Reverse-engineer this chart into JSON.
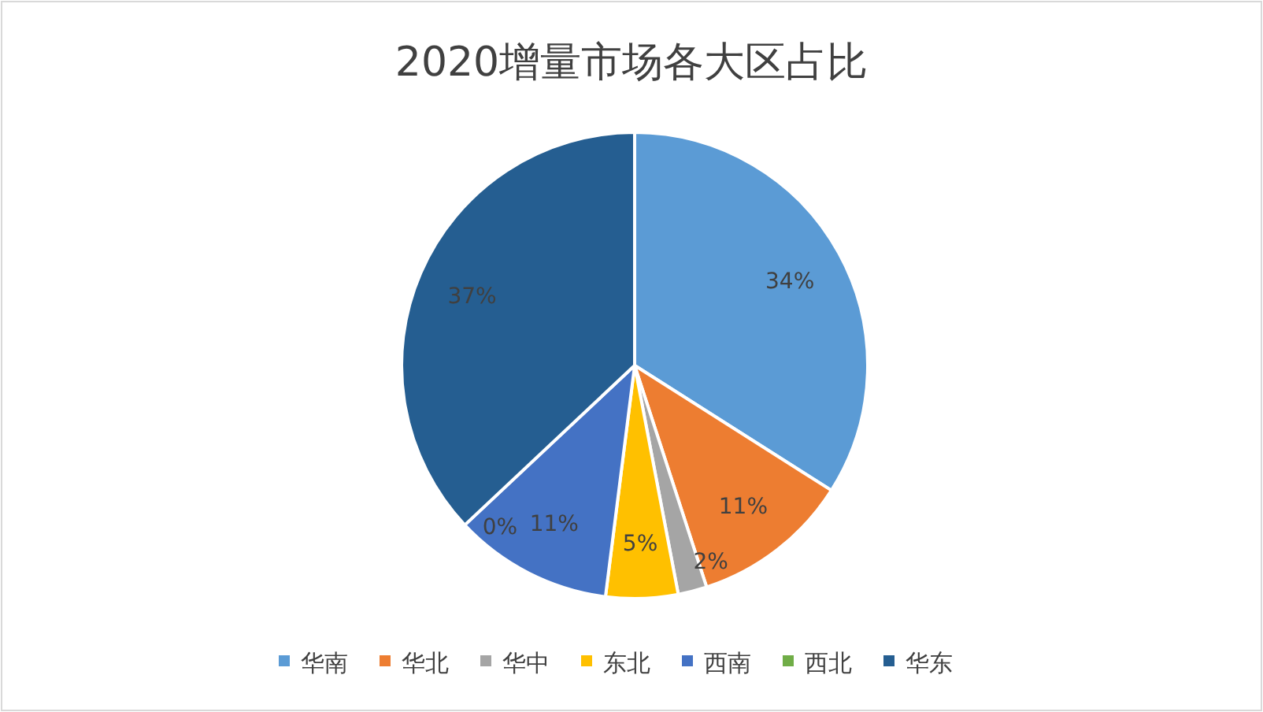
{
  "chart_data": {
    "type": "pie",
    "title": "2020增量市场各大区占比",
    "categories": [
      "华南",
      "华北",
      "华中",
      "东北",
      "西南",
      "西北",
      "华东"
    ],
    "values": [
      34,
      11,
      2,
      5,
      11,
      0,
      37
    ],
    "colors": [
      "#5b9bd5",
      "#ed7d31",
      "#a5a5a5",
      "#ffc000",
      "#4472c4",
      "#70ad47",
      "#255e91"
    ],
    "value_labels": [
      "34%",
      "11%",
      "2%",
      "5%",
      "11%",
      "0%",
      "37%"
    ],
    "legend": "bottom"
  }
}
